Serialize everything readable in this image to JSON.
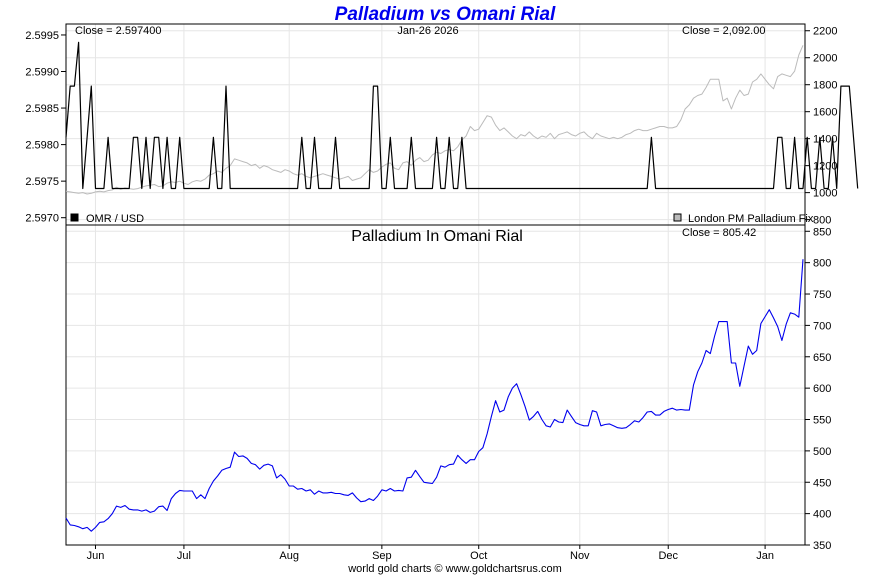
{
  "header": {
    "title": "Palladium vs Omani Rial"
  },
  "footer": {
    "credit": "world gold charts © www.goldchartsrus.com"
  },
  "chart_data": [
    {
      "type": "line",
      "panel": "top",
      "date_label": "Jan-26  2026",
      "left_close_label": "Close = 2.597400",
      "right_close_label": "Close = 2,092.00",
      "left_axis": {
        "ylim": [
          2.5969,
          2.59965
        ],
        "ticks": [
          "2.5995",
          "2.5990",
          "2.5985",
          "2.5980",
          "2.5975",
          "2.5970"
        ],
        "tick_values": [
          2.5995,
          2.599,
          2.5985,
          2.598,
          2.5975,
          2.597
        ]
      },
      "right_axis": {
        "ylim": [
          760,
          2250
        ],
        "ticks": [
          "2200",
          "2000",
          "1800",
          "1600",
          "1400",
          "1200",
          "1000",
          "800"
        ],
        "tick_values": [
          2200,
          2000,
          1800,
          1600,
          1400,
          1200,
          1000,
          800
        ]
      },
      "legend": [
        {
          "name": "OMR / USD",
          "color": "#000000",
          "position": "bottom-left"
        },
        {
          "name": "London PM Palladium Fix",
          "color": "#bbbbbb",
          "position": "bottom-right"
        }
      ],
      "series": [
        {
          "name": "OMR / USD",
          "axis": "left",
          "color": "#000000",
          "values": [
            2.5981,
            2.5988,
            2.5988,
            2.5994,
            2.5974,
            2.5981,
            2.5988,
            2.5974,
            2.5974,
            2.5974,
            2.5981,
            2.5974,
            2.5974,
            2.5974,
            2.5974,
            2.5974,
            2.5981,
            2.5981,
            2.5974,
            2.5981,
            2.5974,
            2.5981,
            2.5981,
            2.5974,
            2.5981,
            2.5974,
            2.5974,
            2.5981,
            2.5974,
            2.5974,
            2.5974,
            2.5974,
            2.5974,
            2.5974,
            2.5974,
            2.5981,
            2.5974,
            2.5974,
            2.5988,
            2.5974,
            2.5974,
            2.5974,
            2.5974,
            2.5974,
            2.5974,
            2.5974,
            2.5974,
            2.5974,
            2.5974,
            2.5974,
            2.5974,
            2.5974,
            2.5974,
            2.5974,
            2.5974,
            2.5974,
            2.5981,
            2.5974,
            2.5974,
            2.5981,
            2.5974,
            2.5974,
            2.5974,
            2.5974,
            2.5981,
            2.5974,
            2.5974,
            2.5974,
            2.5974,
            2.5974,
            2.5974,
            2.5974,
            2.5974,
            2.5988,
            2.5988,
            2.5974,
            2.5974,
            2.5981,
            2.5974,
            2.5974,
            2.5974,
            2.5974,
            2.5981,
            2.5974,
            2.5974,
            2.5974,
            2.5974,
            2.5974,
            2.5981,
            2.5974,
            2.5974,
            2.5981,
            2.5974,
            2.5974,
            2.5981,
            2.5974,
            2.5974,
            2.5974,
            2.5974,
            2.5974,
            2.5974,
            2.5974,
            2.5974,
            2.5974,
            2.5974,
            2.5974,
            2.5974,
            2.5974,
            2.5974,
            2.5974,
            2.5974,
            2.5974,
            2.5974,
            2.5974,
            2.5974,
            2.5974,
            2.5974,
            2.5974,
            2.5974,
            2.5974,
            2.5974,
            2.5974,
            2.5974,
            2.5974,
            2.5974,
            2.5974,
            2.5974,
            2.5974,
            2.5974,
            2.5974,
            2.5974,
            2.5974,
            2.5974,
            2.5974,
            2.5974,
            2.5974,
            2.5974,
            2.5974,
            2.5974,
            2.5981,
            2.5974,
            2.5974,
            2.5974,
            2.5974,
            2.5974,
            2.5974,
            2.5974,
            2.5974,
            2.5974,
            2.5974,
            2.5974,
            2.5974,
            2.5974,
            2.5974,
            2.5974,
            2.5974,
            2.5974,
            2.5974,
            2.5974,
            2.5974,
            2.5974,
            2.5974,
            2.5974,
            2.5974,
            2.5974,
            2.5974,
            2.5974,
            2.5974,
            2.5974,
            2.5981,
            2.5981,
            2.5974,
            2.5974,
            2.5981,
            2.5974,
            2.5974,
            2.5981,
            2.5974,
            2.5974,
            2.5981,
            2.5974,
            2.5974,
            2.5981,
            2.5974,
            2.5988,
            2.5988,
            2.5988,
            2.5981,
            2.5974
          ]
        },
        {
          "name": "London PM Palladium Fix",
          "axis": "right",
          "color": "#bbbbbb",
          "values": [
            1010,
            1005,
            1000,
            995,
            1000,
            990,
            995,
            1005,
            1010,
            1005,
            1015,
            1020,
            1040,
            1025,
            1035,
            1030,
            1025,
            1030,
            1040,
            1050,
            1055,
            1060,
            1045,
            1050,
            1070,
            1080,
            1075,
            1085,
            1070,
            1060,
            1080,
            1090,
            1085,
            1100,
            1130,
            1140,
            1160,
            1150,
            1180,
            1200,
            1250,
            1240,
            1230,
            1220,
            1200,
            1210,
            1180,
            1200,
            1190,
            1170,
            1160,
            1150,
            1170,
            1160,
            1140,
            1130,
            1140,
            1120,
            1110,
            1120,
            1130,
            1140,
            1130,
            1120,
            1110,
            1100,
            1110,
            1120,
            1090,
            1100,
            1110,
            1140,
            1170,
            1150,
            1160,
            1190,
            1210,
            1220,
            1180,
            1170,
            1220,
            1230,
            1200,
            1240,
            1260,
            1230,
            1240,
            1280,
            1300,
            1290,
            1310,
            1320,
            1310,
            1340,
            1390,
            1420,
            1490,
            1460,
            1470,
            1520,
            1570,
            1560,
            1500,
            1460,
            1480,
            1450,
            1420,
            1400,
            1430,
            1420,
            1450,
            1420,
            1400,
            1420,
            1410,
            1440,
            1400,
            1430,
            1440,
            1450,
            1430,
            1420,
            1440,
            1450,
            1420,
            1400,
            1440,
            1420,
            1410,
            1400,
            1410,
            1400,
            1410,
            1430,
            1440,
            1460,
            1470,
            1460,
            1460,
            1470,
            1480,
            1490,
            1490,
            1480,
            1480,
            1490,
            1540,
            1620,
            1650,
            1700,
            1720,
            1730,
            1780,
            1840,
            1840,
            1840,
            1680,
            1700,
            1620,
            1700,
            1760,
            1720,
            1730,
            1820,
            1840,
            1880,
            1840,
            1800,
            1770,
            1860,
            1880,
            1870,
            1860,
            1900,
            2020,
            2092
          ]
        }
      ]
    },
    {
      "type": "line",
      "panel": "bottom",
      "title": "Palladium In Omani Rial",
      "close_label": "Close = 805.42",
      "ylim": [
        350,
        860
      ],
      "ticks": [
        "850",
        "800",
        "750",
        "700",
        "650",
        "600",
        "550",
        "500",
        "450",
        "400",
        "350"
      ],
      "tick_values": [
        850,
        800,
        750,
        700,
        650,
        600,
        550,
        500,
        450,
        400,
        350
      ],
      "x_ticks": [
        "Jun",
        "Jul",
        "Aug",
        "Sep",
        "Oct",
        "Nov",
        "Dec",
        "Jan"
      ],
      "x_tick_index": [
        7,
        28,
        53,
        75,
        98,
        122,
        143,
        166
      ],
      "series": [
        {
          "name": "Palladium In Omani Rial",
          "color": "#0000ee",
          "values": [
            393,
            382,
            381,
            379,
            376,
            378,
            372,
            378,
            386,
            387,
            392,
            400,
            412,
            410,
            413,
            407,
            406,
            406,
            404,
            406,
            402,
            404,
            411,
            412,
            405,
            424,
            432,
            437,
            436,
            436,
            436,
            424,
            430,
            424,
            440,
            452,
            460,
            469,
            472,
            474,
            498,
            491,
            492,
            488,
            480,
            478,
            471,
            477,
            479,
            476,
            457,
            462,
            455,
            444,
            444,
            439,
            440,
            436,
            438,
            431,
            436,
            433,
            433,
            434,
            432,
            432,
            430,
            429,
            433,
            425,
            419,
            420,
            424,
            421,
            428,
            438,
            436,
            440,
            436,
            437,
            436,
            457,
            458,
            469,
            459,
            450,
            449,
            448,
            458,
            476,
            474,
            478,
            479,
            493,
            486,
            480,
            486,
            486,
            499,
            505,
            527,
            555,
            580,
            562,
            565,
            586,
            600,
            607,
            590,
            571,
            549,
            555,
            563,
            550,
            540,
            538,
            550,
            546,
            545,
            565,
            555,
            545,
            542,
            540,
            540,
            564,
            562,
            540,
            542,
            543,
            540,
            537,
            536,
            537,
            542,
            548,
            546,
            553,
            562,
            563,
            557,
            557,
            563,
            566,
            568,
            565,
            566,
            565,
            565,
            605,
            626,
            640,
            660,
            655,
            683,
            706,
            706,
            706,
            640,
            640,
            603,
            635,
            667,
            654,
            660,
            703,
            714,
            725,
            712,
            698,
            676,
            702,
            720,
            718,
            713,
            805.42
          ]
        }
      ]
    }
  ]
}
